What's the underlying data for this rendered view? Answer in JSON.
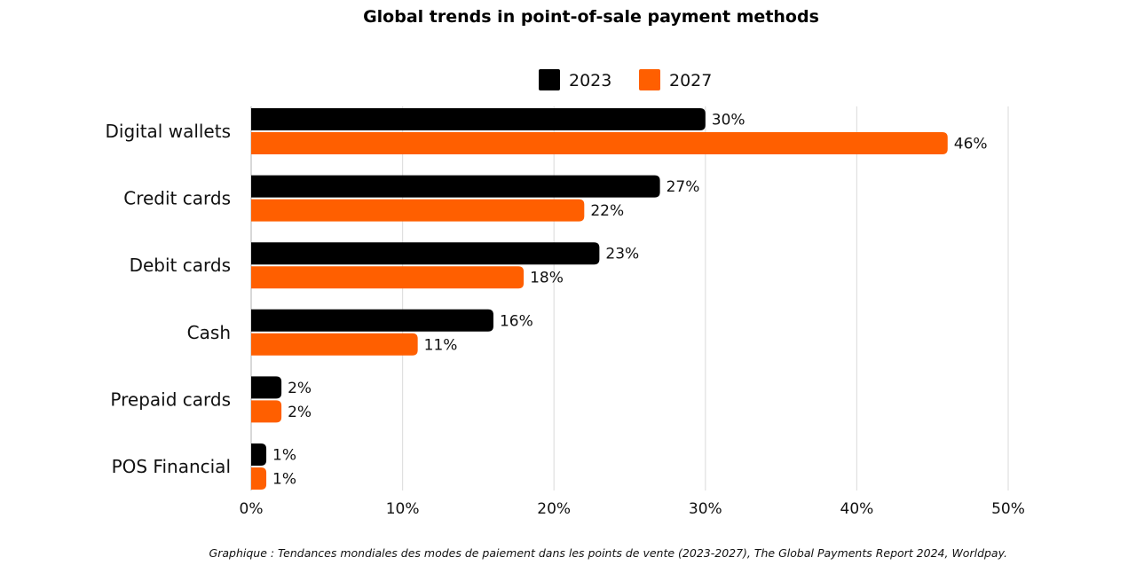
{
  "chart_data": {
    "type": "bar",
    "orientation": "horizontal",
    "title": "Global trends in point-of-sale payment methods",
    "categories": [
      "Digital wallets",
      "Credit cards",
      "Debit cards",
      "Cash",
      "Prepaid cards",
      "POS Financial"
    ],
    "series": [
      {
        "name": "2023",
        "color": "#000000",
        "values": [
          30,
          27,
          23,
          16,
          2,
          1
        ]
      },
      {
        "name": "2027",
        "color": "#ff5f00",
        "values": [
          46,
          22,
          18,
          11,
          2,
          1
        ]
      }
    ],
    "value_suffix": "%",
    "xlim": [
      0,
      50
    ],
    "xticks": [
      0,
      10,
      20,
      30,
      40,
      50
    ],
    "xtick_labels": [
      "0%",
      "10%",
      "20%",
      "30%",
      "40%",
      "50%"
    ],
    "grid": true,
    "legend_position": "top",
    "xlabel": "",
    "ylabel": ""
  },
  "source_note": "Graphique : Tendances mondiales des modes de paiement dans les  points de vente (2023-2027), The Global Payments Report 2024, Worldpay."
}
